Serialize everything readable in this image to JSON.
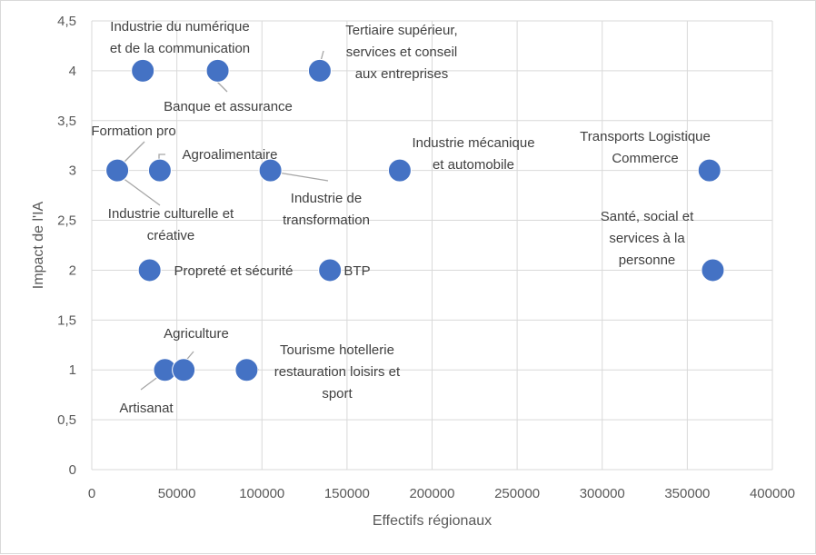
{
  "chart_data": {
    "type": "scatter",
    "xlabel": "Effectifs régionaux",
    "ylabel": "Impact de l'IA",
    "xlim": [
      0,
      400000
    ],
    "ylim": [
      0,
      4.5
    ],
    "grid": true,
    "x_ticks": [
      "0",
      "50000",
      "100000",
      "150000",
      "200000",
      "250000",
      "300000",
      "350000",
      "400000"
    ],
    "y_ticks": [
      "0",
      "0,5",
      "1",
      "1,5",
      "2",
      "2,5",
      "3",
      "3,5",
      "4",
      "4,5"
    ],
    "color": "#4472c4",
    "points": [
      {
        "x": 30000,
        "y": 4,
        "label": [
          "Industrie du numérique",
          "et de la communication"
        ]
      },
      {
        "x": 74000,
        "y": 4,
        "label": [
          "Banque et assurance"
        ]
      },
      {
        "x": 134000,
        "y": 4,
        "label": [
          "Tertiaire supérieur,",
          "services et conseil",
          "aux entreprises"
        ]
      },
      {
        "x": 15000,
        "y": 3,
        "label": [
          "Formation pro"
        ]
      },
      {
        "x": 15000,
        "y": 3,
        "label": [
          "Industrie culturelle et",
          "créative"
        ]
      },
      {
        "x": 40000,
        "y": 3,
        "label": [
          "Agroalimentaire"
        ]
      },
      {
        "x": 105000,
        "y": 3,
        "label": [
          "Industrie de",
          "transformation"
        ]
      },
      {
        "x": 181000,
        "y": 3,
        "label": [
          "Industrie mécanique",
          "et automobile"
        ]
      },
      {
        "x": 363000,
        "y": 3,
        "label": [
          "Transports Logistique",
          "Commerce"
        ]
      },
      {
        "x": 34000,
        "y": 2,
        "label": [
          "Propreté et sécurité"
        ]
      },
      {
        "x": 140000,
        "y": 2,
        "label": [
          "BTP"
        ]
      },
      {
        "x": 365000,
        "y": 2,
        "label": [
          "Santé, social et",
          "services à la",
          "personne"
        ]
      },
      {
        "x": 43000,
        "y": 1,
        "label": [
          "Artisanat"
        ]
      },
      {
        "x": 54000,
        "y": 1,
        "label": [
          "Agriculture"
        ]
      },
      {
        "x": 91000,
        "y": 1,
        "label": [
          "Tourisme hotellerie",
          "restauration loisirs et",
          "sport"
        ]
      }
    ]
  }
}
